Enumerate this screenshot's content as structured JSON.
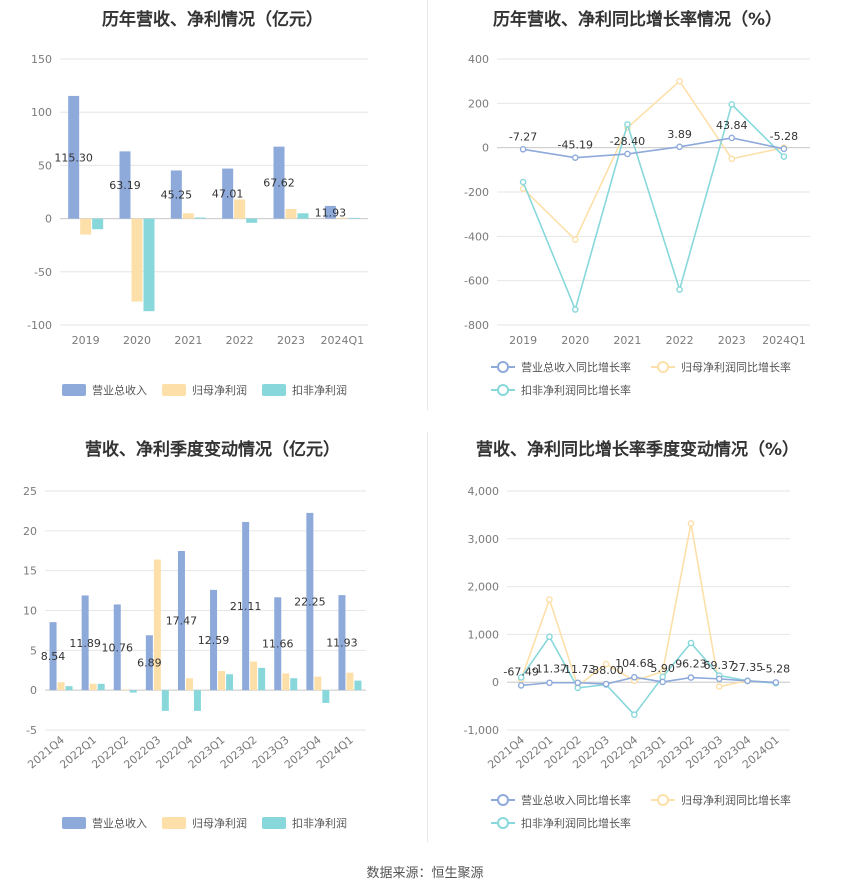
{
  "source_text": "数据来源：恒生聚源",
  "colors": {
    "revenue": "#8eaadb",
    "net_profit": "#fde0a9",
    "deducted_profit": "#88d8db",
    "grid": "#e6e6e6",
    "axis": "#cccccc"
  },
  "chart_data": [
    {
      "type": "bar",
      "title": "历年营收、净利情况（亿元）",
      "categories": [
        "2019",
        "2020",
        "2021",
        "2022",
        "2023",
        "2024Q1"
      ],
      "ylim": [
        -100,
        150
      ],
      "yticks": [
        -100,
        -50,
        0,
        50,
        100,
        150
      ],
      "grid": true,
      "legend_position": "bottom",
      "series": [
        {
          "name": "营业总收入",
          "values": [
            115.3,
            63.19,
            45.25,
            47.01,
            67.62,
            11.93
          ],
          "labels": [
            "115.30",
            "63.19",
            "45.25",
            "47.01",
            "67.62",
            "11.93"
          ]
        },
        {
          "name": "归母净利润",
          "values": [
            -15,
            -78,
            5,
            18,
            9,
            0.8
          ]
        },
        {
          "name": "扣非净利润",
          "values": [
            -10,
            -87,
            1,
            -4,
            5,
            0.7
          ]
        }
      ]
    },
    {
      "type": "line",
      "title": "历年营收、净利同比增长率情况（%）",
      "categories": [
        "2019",
        "2020",
        "2021",
        "2022",
        "2023",
        "2024Q1"
      ],
      "ylim": [
        -800,
        400
      ],
      "yticks": [
        -800,
        -600,
        -400,
        -200,
        0,
        200,
        400
      ],
      "grid": true,
      "legend_position": "bottom",
      "series": [
        {
          "name": "营业总收入同比增长率",
          "values": [
            -7.27,
            -45.19,
            -28.4,
            3.89,
            43.84,
            -5.28
          ],
          "labels": [
            "-7.27",
            "-45.19",
            "-28.40",
            "3.89",
            "43.84",
            "-5.28"
          ]
        },
        {
          "name": "归母净利润同比增长率",
          "values": [
            -185,
            -415,
            90,
            300,
            -50,
            0
          ]
        },
        {
          "name": "扣非净利润同比增长率",
          "values": [
            -155,
            -730,
            105,
            -640,
            195,
            -40
          ]
        }
      ]
    },
    {
      "type": "bar",
      "title": "营收、净利季度变动情况（亿元）",
      "categories": [
        "2021Q4",
        "2022Q1",
        "2022Q2",
        "2022Q3",
        "2022Q4",
        "2023Q1",
        "2023Q2",
        "2023Q3",
        "2023Q4",
        "2024Q1"
      ],
      "ylim": [
        -5,
        25
      ],
      "yticks": [
        -5,
        0,
        5,
        10,
        15,
        20,
        25
      ],
      "grid": true,
      "legend_position": "bottom",
      "series": [
        {
          "name": "营业总收入",
          "values": [
            8.54,
            11.89,
            10.76,
            6.89,
            17.47,
            12.59,
            21.11,
            11.66,
            22.25,
            11.93
          ],
          "labels": [
            "8.54",
            "11.89",
            "10.76",
            "6.89",
            "17.47",
            "12.59",
            "21.11",
            "11.66",
            "22.25",
            "11.93"
          ]
        },
        {
          "name": "归母净利润",
          "values": [
            1.0,
            0.8,
            0.1,
            16.4,
            1.5,
            2.4,
            3.6,
            2.1,
            1.7,
            2.2
          ]
        },
        {
          "name": "扣非净利润",
          "values": [
            0.5,
            0.8,
            -0.3,
            -2.6,
            -2.6,
            2.0,
            2.8,
            1.5,
            -1.6,
            1.2
          ]
        }
      ]
    },
    {
      "type": "line",
      "title": "营收、净利同比增长率季度变动情况（%）",
      "categories": [
        "2021Q4",
        "2022Q1",
        "2022Q2",
        "2022Q3",
        "2022Q4",
        "2023Q1",
        "2023Q2",
        "2023Q3",
        "2023Q4",
        "2024Q1"
      ],
      "ylim": [
        -1000,
        4000
      ],
      "yticks": [
        -1000,
        0,
        1000,
        2000,
        3000,
        4000
      ],
      "ytick_labels": [
        "-1,000",
        "0",
        "1,000",
        "2,000",
        "3,000",
        "4,000"
      ],
      "grid": true,
      "legend_position": "bottom",
      "series": [
        {
          "name": "营业总收入同比增长率",
          "values": [
            -67.49,
            -11.37,
            -11.73,
            -38.0,
            104.68,
            5.9,
            96.23,
            69.37,
            27.35,
            -5.28
          ],
          "labels": [
            "-67.49",
            "-11.37",
            "-11.73",
            "-38.00",
            "104.68",
            "5.90",
            "96.23",
            "69.37",
            "27.35",
            "-5.28"
          ]
        },
        {
          "name": "归母净利润同比增长率",
          "values": [
            60,
            1730,
            -80,
            380,
            30,
            220,
            3320,
            -90,
            30,
            -10
          ]
        },
        {
          "name": "扣非净利润同比增长率",
          "values": [
            100,
            950,
            -120,
            -50,
            -680,
            110,
            820,
            140,
            30,
            -20
          ]
        }
      ]
    }
  ]
}
